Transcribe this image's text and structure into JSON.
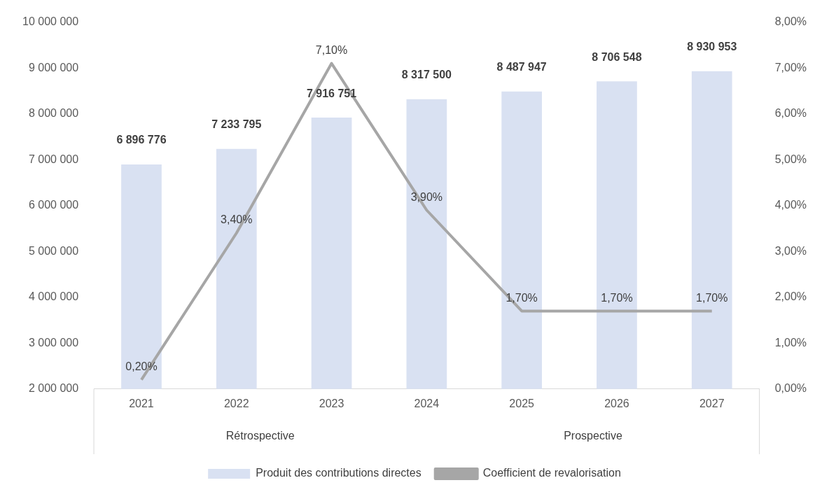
{
  "chart_data": {
    "type": "bar",
    "categories": [
      "2021",
      "2022",
      "2023",
      "2024",
      "2025",
      "2026",
      "2027"
    ],
    "series": [
      {
        "name": "Produit des contributions directes",
        "color": "#d9e1f2",
        "values": [
          6896776,
          7233795,
          7916751,
          8317500,
          8487947,
          8706548,
          8930953
        ],
        "value_labels": [
          "6 896 776",
          "7 233 795",
          "7 916 751",
          "8 317 500",
          "8 487 947",
          "8 706 548",
          "8 930 953"
        ]
      },
      {
        "name": "Coefficient de revalorisation",
        "type": "line",
        "axis": "y2",
        "color": "#a6a6a6",
        "values": [
          0.2,
          3.4,
          7.1,
          3.9,
          1.7,
          1.7,
          1.7
        ],
        "value_labels": [
          "0,20%",
          "3,40%",
          "7,10%",
          "3,90%",
          "1,70%",
          "1,70%",
          "1,70%"
        ]
      }
    ],
    "ylim": [
      2000000,
      10000000
    ],
    "yticks": [
      {
        "value": 2000000,
        "label": "2 000 000"
      },
      {
        "value": 3000000,
        "label": "3 000 000"
      },
      {
        "value": 4000000,
        "label": "4 000 000"
      },
      {
        "value": 5000000,
        "label": "5 000 000"
      },
      {
        "value": 6000000,
        "label": "6 000 000"
      },
      {
        "value": 7000000,
        "label": "7 000 000"
      },
      {
        "value": 8000000,
        "label": "8 000 000"
      },
      {
        "value": 9000000,
        "label": "9 000 000"
      },
      {
        "value": 10000000,
        "label": "10 000 000"
      }
    ],
    "y2lim": [
      0,
      8
    ],
    "y2ticks": [
      {
        "value": 0,
        "label": "0,00%"
      },
      {
        "value": 1,
        "label": "1,00%"
      },
      {
        "value": 2,
        "label": "2,00%"
      },
      {
        "value": 3,
        "label": "3,00%"
      },
      {
        "value": 4,
        "label": "4,00%"
      },
      {
        "value": 5,
        "label": "5,00%"
      },
      {
        "value": 6,
        "label": "6,00%"
      },
      {
        "value": 7,
        "label": "7,00%"
      },
      {
        "value": 8,
        "label": "8,00%"
      }
    ],
    "annotations": [
      "Rétrospective",
      "Prospective"
    ],
    "grid": false,
    "legend": "bottom",
    "marker": "none",
    "line_style": "solid"
  }
}
